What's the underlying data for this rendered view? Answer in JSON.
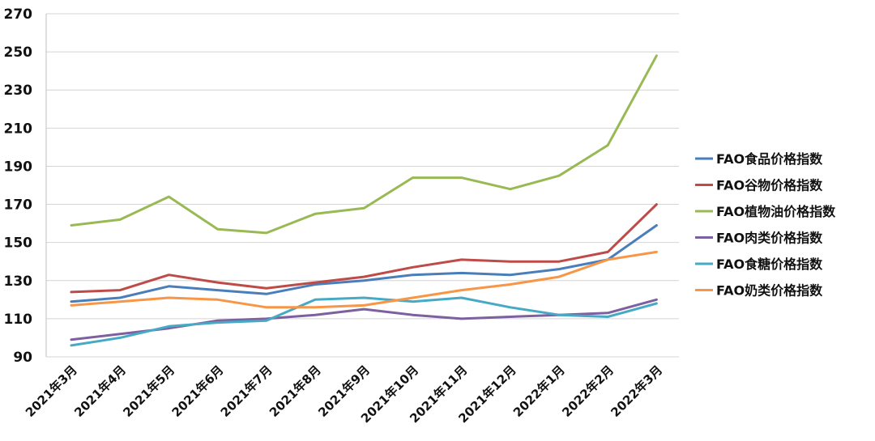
{
  "chart_data": {
    "type": "line",
    "title": "",
    "xlabel": "",
    "ylabel": "",
    "ylim": [
      90,
      270
    ],
    "yticks": [
      90,
      110,
      130,
      150,
      170,
      190,
      210,
      230,
      250,
      270
    ],
    "grid": "horizontal",
    "legend_position": "right",
    "categories": [
      "2021年3月",
      "2021年4月",
      "2021年5月",
      "2021年6月",
      "2021年7月",
      "2021年8月",
      "2021年9月",
      "2021年10月",
      "2021年11月",
      "2021年12月",
      "2022年1月",
      "2022年2月",
      "2022年3月"
    ],
    "series": [
      {
        "name": "FAO食品价格指数",
        "color": "#4a7ebb",
        "values": [
          119,
          121,
          127,
          125,
          123,
          128,
          130,
          133,
          134,
          133,
          136,
          141,
          159
        ]
      },
      {
        "name": "FAO谷物价格指数",
        "color": "#be4b48",
        "values": [
          124,
          125,
          133,
          129,
          126,
          129,
          132,
          137,
          141,
          140,
          140,
          145,
          170
        ]
      },
      {
        "name": "FAO植物油价格指数",
        "color": "#98b954",
        "values": [
          159,
          162,
          174,
          157,
          155,
          165,
          168,
          184,
          184,
          178,
          185,
          201,
          248
        ]
      },
      {
        "name": "FAO肉类价格指数",
        "color": "#7d60a0",
        "values": [
          99,
          102,
          105,
          109,
          110,
          112,
          115,
          112,
          110,
          111,
          112,
          113,
          120
        ]
      },
      {
        "name": "FAO食糖价格指数",
        "color": "#46aac5",
        "values": [
          96,
          100,
          106,
          108,
          109,
          120,
          121,
          119,
          121,
          116,
          112,
          111,
          118
        ]
      },
      {
        "name": "FAO奶类价格指数",
        "color": "#f79646",
        "values": [
          117,
          119,
          121,
          120,
          116,
          116,
          117,
          121,
          125,
          128,
          132,
          141,
          145
        ]
      }
    ]
  }
}
